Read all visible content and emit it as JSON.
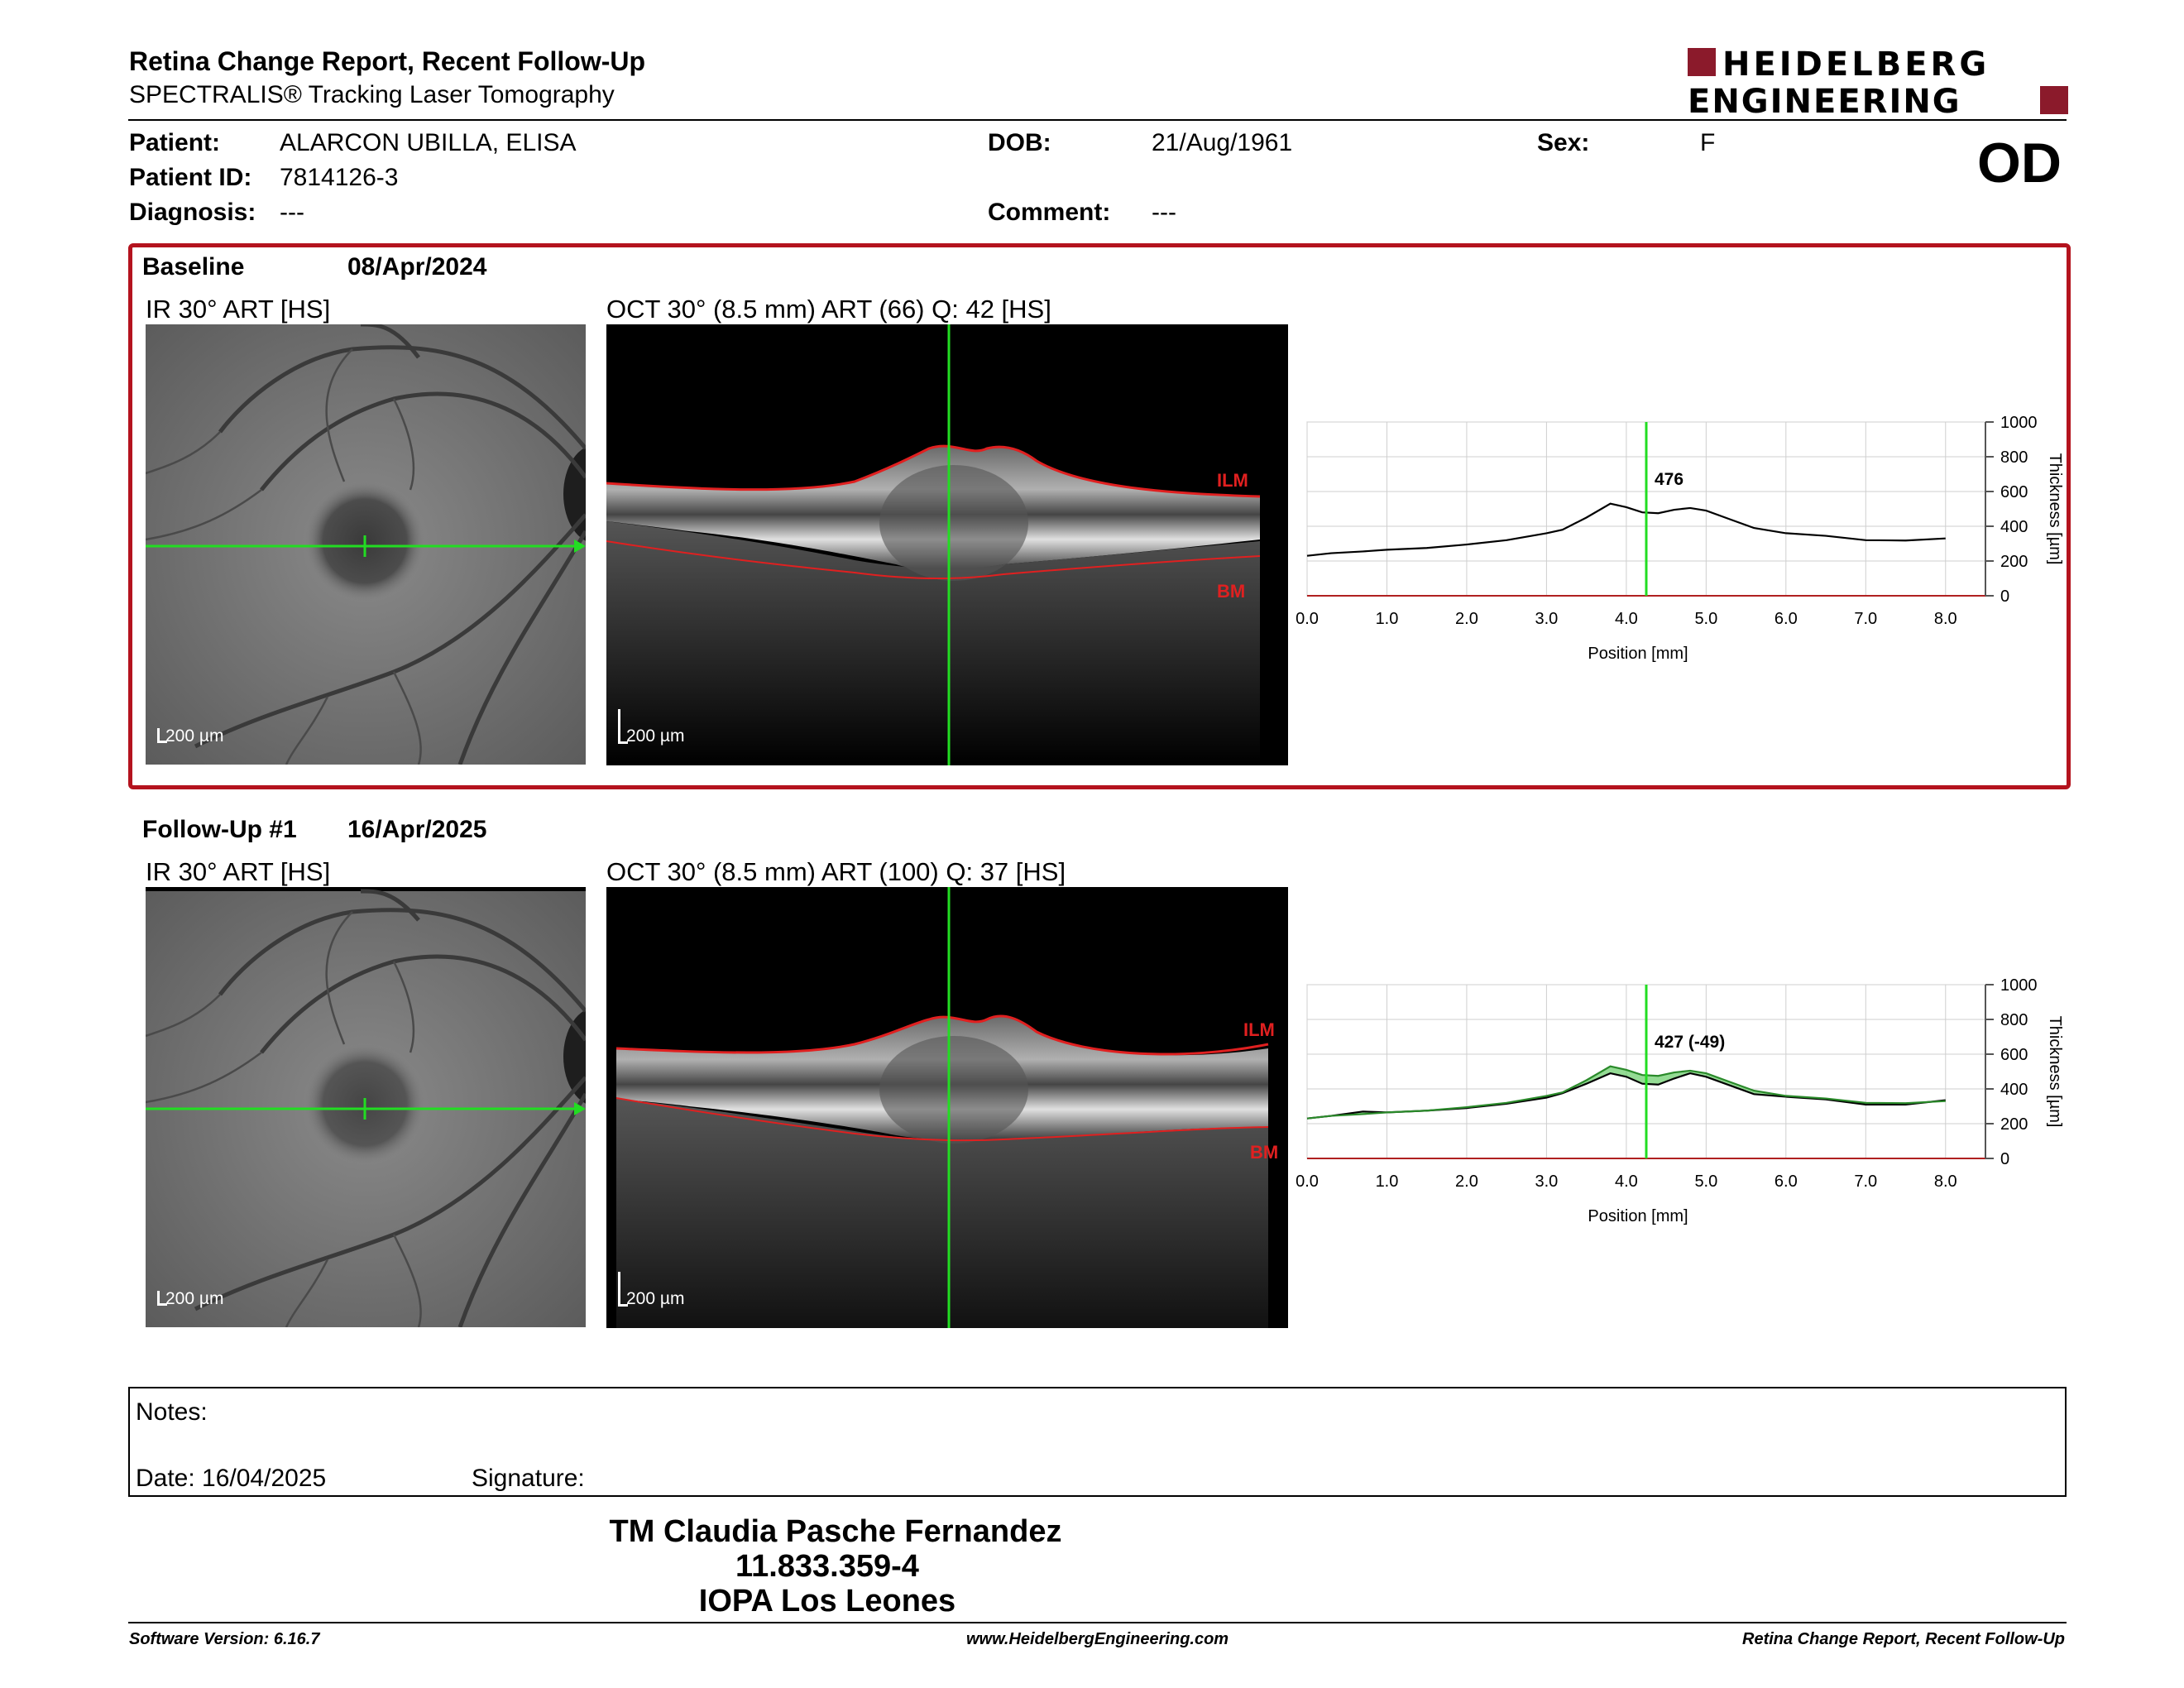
{
  "header": {
    "title": "Retina Change Report, Recent Follow-Up",
    "subtitle": "SPECTRALIS® Tracking Laser Tomography",
    "logo_line1": "HEIDELBERG",
    "logo_line2": "ENGINEERING",
    "eye": "OD"
  },
  "patient": {
    "patient_label": "Patient:",
    "patient_value": "ALARCON UBILLA, ELISA",
    "id_label": "Patient ID:",
    "id_value": "7814126-3",
    "diagnosis_label": "Diagnosis:",
    "diagnosis_value": "---",
    "dob_label": "DOB:",
    "dob_value": "21/Aug/1961",
    "comment_label": "Comment:",
    "comment_value": "---",
    "sex_label": "Sex:",
    "sex_value": "F"
  },
  "baseline": {
    "label": "Baseline",
    "date": "08/Apr/2024",
    "ir_title": "IR 30° ART [HS]",
    "oct_title": "OCT 30° (8.5 mm) ART (66) Q: 42 [HS]",
    "ir_scale": "200 µm",
    "oct_scale": "200 µm",
    "ilm_label": "ILM",
    "bm_label": "BM"
  },
  "followup": {
    "label": "Follow-Up #1",
    "date": "16/Apr/2025",
    "ir_title": "IR 30° ART [HS]",
    "oct_title": "OCT 30° (8.5 mm) ART (100) Q: 37 [HS]",
    "ir_scale": "200 µm",
    "oct_scale": "200 µm",
    "ilm_label": "ILM",
    "bm_label": "BM"
  },
  "chart_data": [
    {
      "type": "line",
      "title": "",
      "xlabel": "Position [mm]",
      "ylabel": "Thickness [µm]",
      "xlim": [
        0,
        8.5
      ],
      "ylim": [
        0,
        1000
      ],
      "xticks": [
        "0.0",
        "1.0",
        "2.0",
        "3.0",
        "4.0",
        "5.0",
        "6.0",
        "7.0",
        "8.0"
      ],
      "yticks": [
        "0",
        "200",
        "400",
        "600",
        "800",
        "1000"
      ],
      "grid": true,
      "cursor_x": 4.25,
      "cursor_label": "476",
      "series": [
        {
          "values": [
            [
              0,
              230
            ],
            [
              0.3,
              245
            ],
            [
              0.7,
              255
            ],
            [
              1,
              265
            ],
            [
              1.5,
              275
            ],
            [
              2,
              295
            ],
            [
              2.5,
              320
            ],
            [
              3,
              360
            ],
            [
              3.2,
              380
            ],
            [
              3.5,
              450
            ],
            [
              3.8,
              530
            ],
            [
              4,
              510
            ],
            [
              4.2,
              480
            ],
            [
              4.4,
              475
            ],
            [
              4.6,
              495
            ],
            [
              4.8,
              505
            ],
            [
              5,
              490
            ],
            [
              5.3,
              440
            ],
            [
              5.6,
              390
            ],
            [
              6,
              360
            ],
            [
              6.5,
              345
            ],
            [
              7,
              320
            ],
            [
              7.5,
              318
            ],
            [
              8,
              330
            ]
          ]
        }
      ]
    },
    {
      "type": "line",
      "title": "",
      "xlabel": "Position [mm]",
      "ylabel": "Thickness [µm]",
      "xlim": [
        0,
        8.5
      ],
      "ylim": [
        0,
        1000
      ],
      "xticks": [
        "0.0",
        "1.0",
        "2.0",
        "3.0",
        "4.0",
        "5.0",
        "6.0",
        "7.0",
        "8.0"
      ],
      "yticks": [
        "0",
        "200",
        "400",
        "600",
        "800",
        "1000"
      ],
      "grid": true,
      "cursor_x": 4.25,
      "cursor_label": "427 (-49)",
      "series": [
        {
          "values": [
            [
              0,
              230
            ],
            [
              0.3,
              245
            ],
            [
              0.7,
              270
            ],
            [
              1,
              265
            ],
            [
              1.5,
              275
            ],
            [
              2,
              290
            ],
            [
              2.5,
              315
            ],
            [
              3,
              350
            ],
            [
              3.2,
              375
            ],
            [
              3.5,
              430
            ],
            [
              3.8,
              490
            ],
            [
              4,
              470
            ],
            [
              4.2,
              430
            ],
            [
              4.4,
              425
            ],
            [
              4.6,
              460
            ],
            [
              4.8,
              490
            ],
            [
              5,
              470
            ],
            [
              5.3,
              420
            ],
            [
              5.6,
              370
            ],
            [
              6,
              355
            ],
            [
              6.5,
              340
            ],
            [
              7,
              310
            ],
            [
              7.5,
              310
            ],
            [
              8,
              335
            ]
          ]
        },
        {
          "values": [
            [
              0,
              230
            ],
            [
              0.3,
              245
            ],
            [
              0.7,
              255
            ],
            [
              1,
              265
            ],
            [
              1.5,
              275
            ],
            [
              2,
              295
            ],
            [
              2.5,
              320
            ],
            [
              3,
              360
            ],
            [
              3.2,
              380
            ],
            [
              3.5,
              450
            ],
            [
              3.8,
              530
            ],
            [
              4,
              510
            ],
            [
              4.2,
              480
            ],
            [
              4.4,
              475
            ],
            [
              4.6,
              495
            ],
            [
              4.8,
              505
            ],
            [
              5,
              490
            ],
            [
              5.3,
              440
            ],
            [
              5.6,
              390
            ],
            [
              6,
              360
            ],
            [
              6.5,
              345
            ],
            [
              7,
              320
            ],
            [
              7.5,
              318
            ],
            [
              8,
              330
            ]
          ]
        }
      ]
    }
  ],
  "notes": {
    "notes_label": "Notes:",
    "date_label": "Date: 16/04/2025",
    "signature_label": "Signature:"
  },
  "signature_block": {
    "line1": "TM Claudia Pasche Fernandez",
    "line2": "11.833.359-4",
    "line3": "IOPA Los Leones"
  },
  "footer": {
    "software": "Software Version: 6.16.7",
    "website": "www.HeidelbergEngineering.com",
    "report": "Retina Change Report, Recent Follow-Up"
  },
  "colors": {
    "accent_red": "#b4131e",
    "logo_red": "#8b1a2b",
    "scan_green": "#22dd22",
    "layer_red": "#e02020"
  }
}
